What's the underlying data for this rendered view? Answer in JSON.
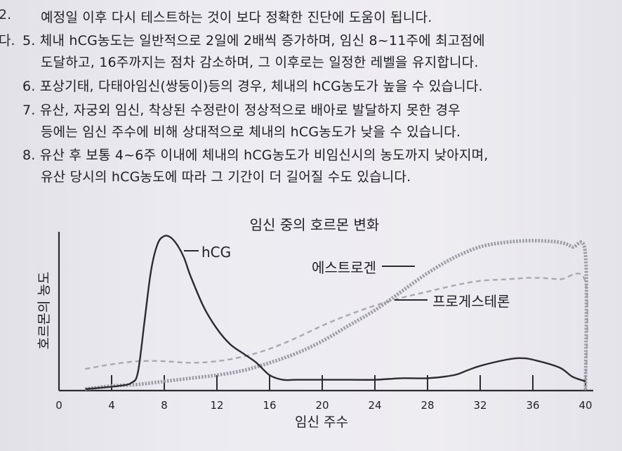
{
  "text": {
    "top_line": "예정일 이후 다시 테스트하는 것이 보다 정확한 진단에 도움이 됩니다.",
    "edge_mark_top": "2.",
    "edge_mark_mid": "다.",
    "items": [
      {
        "num": "5.",
        "lines": [
          "체내 hCG농도는 일반적으로 2일에 2배씩 증가하며, 임신 8~11주에 최고점에",
          "도달하고, 16주까지는 점차 감소하며, 그 이후로는 일정한 레벨을 유지합니다."
        ]
      },
      {
        "num": "6.",
        "lines": [
          "포상기태, 다태아임신(쌍둥이)등의 경우, 체내의 hCG농도가 높을 수 있습니다."
        ]
      },
      {
        "num": "7.",
        "lines": [
          "유산, 자궁외 임신, 착상된 수정란이 정상적으로 배아로 발달하지 못한 경우",
          "등에는 임신 주수에 비해 상대적으로 체내의 hCG농도가 낮을 수 있습니다."
        ]
      },
      {
        "num": "8.",
        "lines": [
          "유산 후 보통 4~6주 이내에 체내의 hCG농도가 비임신시의 농도까지 낮아지며,",
          "유산 당시의 hCG농도에 따라 그 기간이 더 길어질 수도 있습니다."
        ]
      }
    ]
  },
  "chart_data": {
    "type": "line",
    "title": "임신 중의 호르몬 변화",
    "xlabel": "임신 주수",
    "ylabel": "호르몬의 농도",
    "xlim": [
      0,
      40
    ],
    "ylim": [
      0,
      100
    ],
    "x_ticks": [
      0,
      4,
      8,
      12,
      16,
      20,
      24,
      28,
      32,
      36,
      40
    ],
    "grid": false,
    "series": [
      {
        "name": "hCG",
        "style": "solid",
        "color": "#2b2b30",
        "points": [
          [
            2,
            1
          ],
          [
            4.5,
            3
          ],
          [
            5.5,
            5
          ],
          [
            6,
            12
          ],
          [
            6.5,
            45
          ],
          [
            7,
            78
          ],
          [
            7.5,
            95
          ],
          [
            8,
            100
          ],
          [
            8.5,
            99
          ],
          [
            9,
            94
          ],
          [
            9.5,
            86
          ],
          [
            10,
            74
          ],
          [
            11,
            54
          ],
          [
            12,
            40
          ],
          [
            13,
            30
          ],
          [
            14,
            24
          ],
          [
            15,
            18
          ],
          [
            16,
            10
          ],
          [
            17,
            7
          ],
          [
            18,
            7
          ],
          [
            20,
            7
          ],
          [
            22,
            7
          ],
          [
            24,
            7
          ],
          [
            26,
            8
          ],
          [
            28,
            8
          ],
          [
            30,
            10
          ],
          [
            31,
            13
          ],
          [
            32,
            16
          ],
          [
            34,
            20
          ],
          [
            35,
            21
          ],
          [
            36,
            20
          ],
          [
            38,
            15
          ],
          [
            39,
            9
          ],
          [
            40,
            6
          ]
        ]
      },
      {
        "name": "에스트로겐",
        "style": "dotted-thick",
        "color": "#9c9ca6",
        "points": [
          [
            2,
            1
          ],
          [
            4,
            3
          ],
          [
            6,
            4
          ],
          [
            8,
            6
          ],
          [
            10,
            8
          ],
          [
            12,
            10
          ],
          [
            14,
            13
          ],
          [
            16,
            18
          ],
          [
            18,
            24
          ],
          [
            20,
            32
          ],
          [
            22,
            42
          ],
          [
            24,
            52
          ],
          [
            26,
            64
          ],
          [
            28,
            76
          ],
          [
            30,
            86
          ],
          [
            32,
            93
          ],
          [
            34,
            96
          ],
          [
            36,
            97
          ],
          [
            38,
            96
          ],
          [
            39,
            93
          ],
          [
            40,
            88
          ],
          [
            40,
            0
          ]
        ]
      },
      {
        "name": "프로게스테론",
        "style": "dashed-thin",
        "color": "#a8a8b0",
        "points": [
          [
            2,
            14
          ],
          [
            4,
            17
          ],
          [
            6,
            19
          ],
          [
            8,
            19
          ],
          [
            10,
            18
          ],
          [
            12,
            19
          ],
          [
            14,
            22
          ],
          [
            16,
            27
          ],
          [
            18,
            34
          ],
          [
            20,
            42
          ],
          [
            22,
            49
          ],
          [
            24,
            55
          ],
          [
            26,
            60
          ],
          [
            28,
            64
          ],
          [
            30,
            68
          ],
          [
            32,
            71
          ],
          [
            34,
            72
          ],
          [
            36,
            73
          ],
          [
            38,
            72
          ],
          [
            40,
            70
          ],
          [
            40,
            0
          ]
        ]
      }
    ]
  }
}
